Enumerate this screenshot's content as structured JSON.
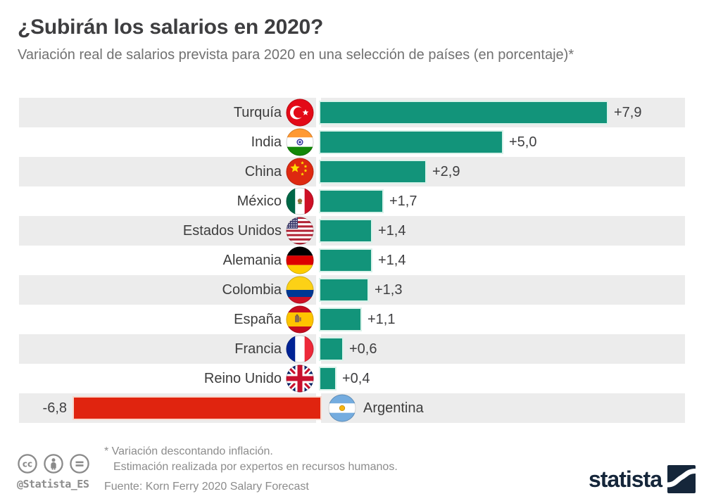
{
  "header": {
    "title": "¿Subirán los salarios en 2020?",
    "subtitle": "Variación real de salarios prevista para 2020 en una selección de países (en porcentaje)*"
  },
  "chart_data": {
    "type": "bar",
    "orientation": "horizontal",
    "title": "¿Subirán los salarios en 2020?",
    "subtitle": "Variación real de salarios prevista para 2020 en una selección de países (en porcentaje)*",
    "unit": "percent",
    "xlim": [
      -6.8,
      7.9
    ],
    "grid": false,
    "legend": false,
    "row_stripes": true,
    "categories": [
      "Turquía",
      "India",
      "China",
      "México",
      "Estados Unidos",
      "Alemania",
      "Colombia",
      "España",
      "Francia",
      "Reino Unido",
      "Argentina"
    ],
    "values": [
      7.9,
      5.0,
      2.9,
      1.7,
      1.4,
      1.4,
      1.3,
      1.1,
      0.6,
      0.4,
      -6.8
    ],
    "value_labels": [
      "+7,9",
      "+5,0",
      "+2,9",
      "+1,7",
      "+1,4",
      "+1,4",
      "+1,3",
      "+1,1",
      "+0,6",
      "+0,4",
      "-6,8"
    ],
    "country_codes": [
      "tr",
      "in",
      "cn",
      "mx",
      "us",
      "de",
      "co",
      "es",
      "fr",
      "gb",
      "ar"
    ],
    "flag_icons": [
      "flag-turkey-icon",
      "flag-india-icon",
      "flag-china-icon",
      "flag-mexico-icon",
      "flag-usa-icon",
      "flag-germany-icon",
      "flag-colombia-icon",
      "flag-spain-icon",
      "flag-france-icon",
      "flag-uk-icon",
      "flag-argentina-icon"
    ],
    "positive_color": "#12947a",
    "negative_color": "#e0240f",
    "row_stripe_color": "#ececec"
  },
  "footer": {
    "license_icons": [
      "cc-icon",
      "attribution-icon",
      "no-derivatives-icon"
    ],
    "handle": "@Statista_ES",
    "note_line1": "* Variación descontando inflación.",
    "note_line2": "Estimación realizada por expertos en recursos humanos.",
    "source": "Fuente: Korn Ferry 2020 Salary Forecast",
    "brand": "statista",
    "brand_color": "#15263a"
  }
}
